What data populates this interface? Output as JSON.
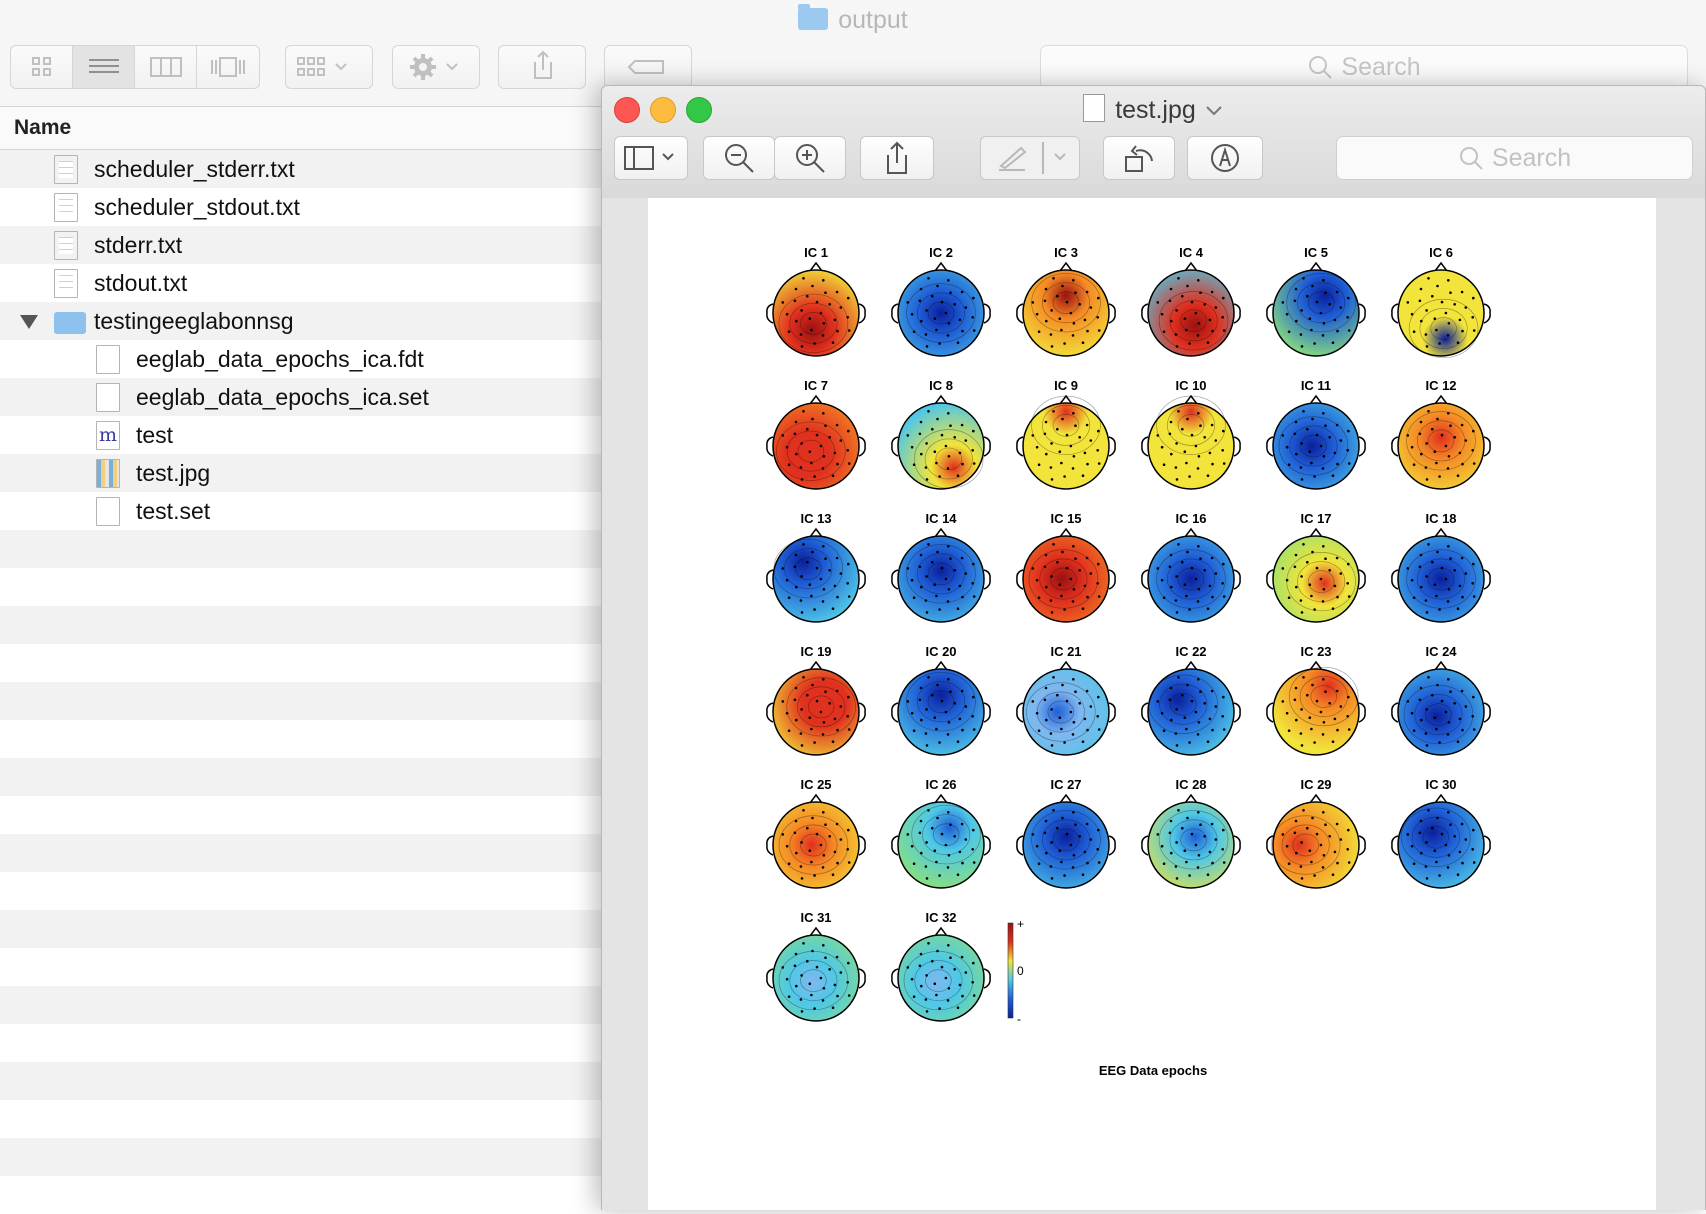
{
  "finder": {
    "title": "output",
    "search_placeholder": "Search",
    "column_header": "Name",
    "files": [
      {
        "name": "scheduler_stderr.txt",
        "kind": "text",
        "indent": 0
      },
      {
        "name": "scheduler_stdout.txt",
        "kind": "text",
        "indent": 0
      },
      {
        "name": "stderr.txt",
        "kind": "text",
        "indent": 0
      },
      {
        "name": "stdout.txt",
        "kind": "text",
        "indent": 0
      },
      {
        "name": "testingeeglabonnsg",
        "kind": "folder",
        "indent": 0,
        "expanded": true
      },
      {
        "name": "eeglab_data_epochs_ica.fdt",
        "kind": "file",
        "indent": 1
      },
      {
        "name": "eeglab_data_epochs_ica.set",
        "kind": "file",
        "indent": 1
      },
      {
        "name": "test",
        "kind": "matlab",
        "indent": 1
      },
      {
        "name": "test.jpg",
        "kind": "image",
        "indent": 1
      },
      {
        "name": "test.set",
        "kind": "file",
        "indent": 1
      }
    ]
  },
  "preview": {
    "title": "test.jpg",
    "search_placeholder": "Search",
    "figure": {
      "caption": "EEG Data epochs",
      "colorbar": {
        "max_label": "+",
        "mid_label": "0",
        "min_label": "-"
      },
      "components": [
        {
          "label": "IC 1",
          "pattern": "red-posterior"
        },
        {
          "label": "IC 2",
          "pattern": "blue-global"
        },
        {
          "label": "IC 3",
          "pattern": "red-frontal"
        },
        {
          "label": "IC 4",
          "pattern": "red-central-posterior"
        },
        {
          "label": "IC 5",
          "pattern": "blue-top-red-bottom-left"
        },
        {
          "label": "IC 6",
          "pattern": "yellow-blue-posterior"
        },
        {
          "label": "IC 7",
          "pattern": "orange-global"
        },
        {
          "label": "IC 8",
          "pattern": "cyan-red-right-posterior"
        },
        {
          "label": "IC 9",
          "pattern": "yellow-red-frontal"
        },
        {
          "label": "IC 10",
          "pattern": "yellow-red-frontal"
        },
        {
          "label": "IC 11",
          "pattern": "blue-central"
        },
        {
          "label": "IC 12",
          "pattern": "red-center"
        },
        {
          "label": "IC 13",
          "pattern": "blue-red-right"
        },
        {
          "label": "IC 14",
          "pattern": "blue-center"
        },
        {
          "label": "IC 15",
          "pattern": "red-global"
        },
        {
          "label": "IC 16",
          "pattern": "blue-global"
        },
        {
          "label": "IC 17",
          "pattern": "green-red-right"
        },
        {
          "label": "IC 18",
          "pattern": "blue-global"
        },
        {
          "label": "IC 19",
          "pattern": "red-right"
        },
        {
          "label": "IC 20",
          "pattern": "blue-frontal"
        },
        {
          "label": "IC 21",
          "pattern": "cyan-red-right-top"
        },
        {
          "label": "IC 22",
          "pattern": "blue-left"
        },
        {
          "label": "IC 23",
          "pattern": "orange-red-top-right"
        },
        {
          "label": "IC 24",
          "pattern": "blue-red-top-right"
        },
        {
          "label": "IC 25",
          "pattern": "red-left-center"
        },
        {
          "label": "IC 26",
          "pattern": "green-blue-right-top"
        },
        {
          "label": "IC 27",
          "pattern": "blue-center"
        },
        {
          "label": "IC 28",
          "pattern": "yellow-blue-center"
        },
        {
          "label": "IC 29",
          "pattern": "orange-red-sides"
        },
        {
          "label": "IC 30",
          "pattern": "blue-red-right-posterior"
        },
        {
          "label": "IC 31",
          "pattern": "cyan-mixed"
        },
        {
          "label": "IC 32",
          "pattern": "cyan-mixed"
        }
      ]
    }
  }
}
